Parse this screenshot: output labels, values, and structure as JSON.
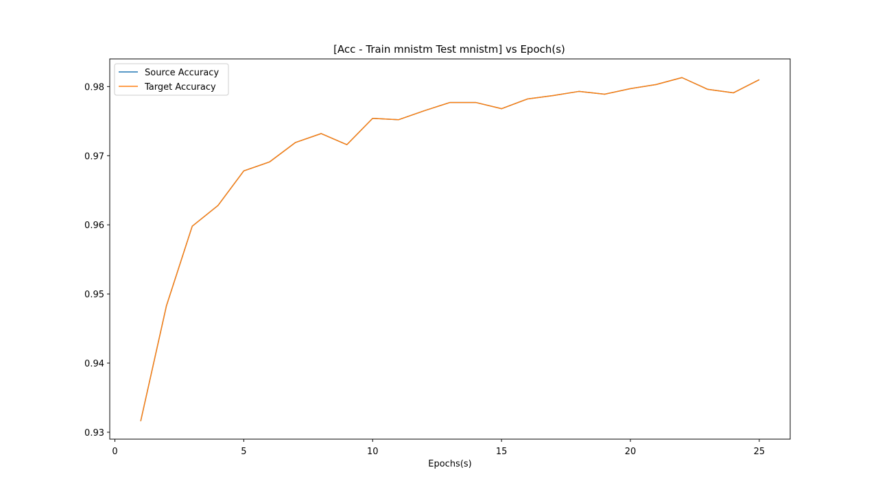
{
  "chart_data": {
    "type": "line",
    "title": "[Acc - Train mnistm Test mnistm] vs Epoch(s)",
    "xlabel": "Epochs(s)",
    "ylabel": "",
    "xlim": [
      -0.2,
      26.2
    ],
    "ylim": [
      0.929,
      0.984
    ],
    "xticks": [
      0,
      5,
      10,
      15,
      20,
      25
    ],
    "yticks": [
      0.93,
      0.94,
      0.95,
      0.96,
      0.97,
      0.98
    ],
    "ytick_labels": [
      "0.93",
      "0.94",
      "0.95",
      "0.96",
      "0.97",
      "0.98"
    ],
    "grid": false,
    "legend_position": "top-left",
    "x": [
      1,
      2,
      3,
      4,
      5,
      6,
      7,
      8,
      9,
      10,
      11,
      12,
      13,
      14,
      15,
      16,
      17,
      18,
      19,
      20,
      21,
      22,
      23,
      24,
      25
    ],
    "series": [
      {
        "name": "Source Accuracy",
        "color": "#1f77b4",
        "values": [
          0.9316,
          0.9483,
          0.9598,
          0.9628,
          0.9678,
          0.9691,
          0.9719,
          0.9732,
          0.9716,
          0.9754,
          0.9752,
          0.9765,
          0.9777,
          0.9777,
          0.9768,
          0.9782,
          0.9787,
          0.9793,
          0.9789,
          0.9797,
          0.9803,
          0.9813,
          0.9796,
          0.9791,
          0.981
        ]
      },
      {
        "name": "Target Accuracy",
        "color": "#ff7f0e",
        "values": [
          0.9316,
          0.9483,
          0.9598,
          0.9628,
          0.9678,
          0.9691,
          0.9719,
          0.9732,
          0.9716,
          0.9754,
          0.9752,
          0.9765,
          0.9777,
          0.9777,
          0.9768,
          0.9782,
          0.9787,
          0.9793,
          0.9789,
          0.9797,
          0.9803,
          0.9813,
          0.9796,
          0.9791,
          0.981
        ]
      }
    ]
  }
}
